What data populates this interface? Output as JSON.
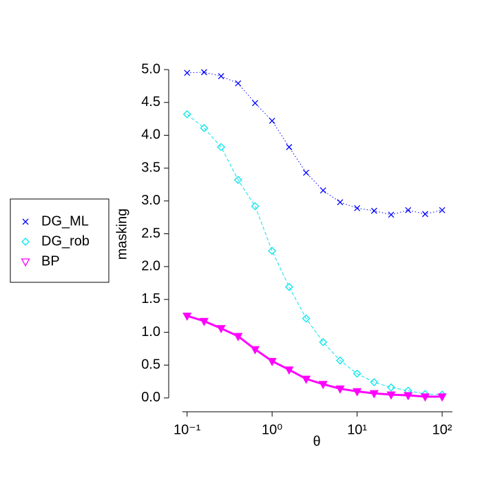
{
  "chart_data": {
    "type": "line",
    "x_label": "θ",
    "y_label": "masking",
    "x": [
      0.1,
      0.1585,
      0.2512,
      0.3981,
      0.631,
      1,
      1.585,
      2.512,
      3.981,
      6.31,
      10,
      15.85,
      25.12,
      39.81,
      63.1,
      100
    ],
    "series": [
      {
        "name": "DG_ML",
        "color": "#0000ff",
        "line_style": "dotted",
        "marker": "cross",
        "values": [
          4.95,
          4.96,
          4.9,
          4.79,
          4.49,
          4.22,
          3.82,
          3.43,
          3.16,
          2.98,
          2.89,
          2.85,
          2.79,
          2.86,
          2.8,
          2.86
        ]
      },
      {
        "name": "DG_rob",
        "color": "#00e5ee",
        "line_style": "dashed",
        "marker": "diamond",
        "values": [
          4.32,
          4.11,
          3.82,
          3.32,
          2.92,
          2.24,
          1.69,
          1.21,
          0.85,
          0.57,
          0.37,
          0.24,
          0.16,
          0.11,
          0.06,
          0.05
        ]
      },
      {
        "name": "BP",
        "color": "#ff00ff",
        "line_style": "solid",
        "marker": "triangle-down",
        "values": [
          1.25,
          1.17,
          1.06,
          0.94,
          0.74,
          0.56,
          0.43,
          0.29,
          0.21,
          0.14,
          0.1,
          0.07,
          0.05,
          0.04,
          0.02,
          0.02
        ]
      }
    ],
    "x_log": true,
    "xlim": [
      0.076,
      132
    ],
    "xticks": [
      {
        "value": 0.1,
        "label": "10⁻¹"
      },
      {
        "value": 1,
        "label": "10⁰"
      },
      {
        "value": 10,
        "label": "10¹"
      },
      {
        "value": 100,
        "label": "10²"
      }
    ],
    "ylim": [
      -0.2,
      5.2
    ],
    "yticks": [
      {
        "value": 0,
        "label": "0.0"
      },
      0.5,
      {
        "value": 1,
        "label": "1.0"
      },
      1.5,
      {
        "value": 2,
        "label": "2.0"
      },
      2.5,
      {
        "value": 3,
        "label": "3.0"
      },
      3.5,
      {
        "value": 4,
        "label": "4.0"
      },
      4.5,
      {
        "value": 5,
        "label": "5.0"
      }
    ],
    "legend": "left"
  }
}
